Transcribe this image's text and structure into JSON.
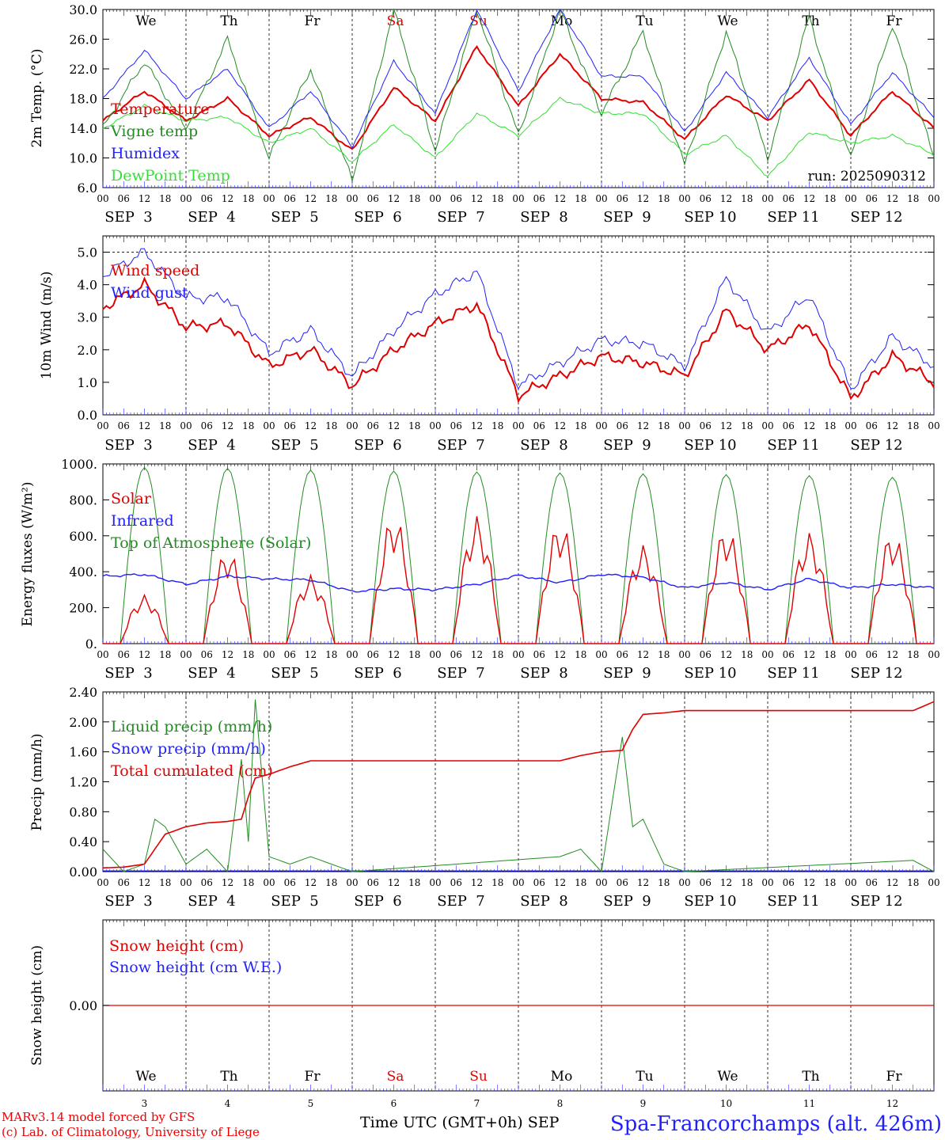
{
  "run_label": "run: 2025090312",
  "x_title": "Time UTC (GMT+0h) SEP",
  "station": "Spa-Francorchamps (alt. 426m)",
  "credits": [
    "MARv3.14 model forced by GFS",
    "(c) Lab. of Climatology, University of Liege"
  ],
  "weekdays": [
    {
      "label": "We",
      "color": "#000000"
    },
    {
      "label": "Th",
      "color": "#000000"
    },
    {
      "label": "Fr",
      "color": "#000000"
    },
    {
      "label": "Sa",
      "color": "#e00000"
    },
    {
      "label": "Su",
      "color": "#e00000"
    },
    {
      "label": "Mo",
      "color": "#000000"
    },
    {
      "label": "Tu",
      "color": "#000000"
    },
    {
      "label": "We",
      "color": "#000000"
    },
    {
      "label": "Th",
      "color": "#000000"
    },
    {
      "label": "Fr",
      "color": "#000000"
    }
  ],
  "date_labels": [
    "SEP  3",
    "SEP  4",
    "SEP  5",
    "SEP  6",
    "SEP  7",
    "SEP  8",
    "SEP  9",
    "SEP 10",
    "SEP 11",
    "SEP 12"
  ],
  "day_numbers": [
    "3",
    "4",
    "5",
    "6",
    "7",
    "8",
    "9",
    "10",
    "11",
    "12"
  ],
  "hour_ticks": [
    "00",
    "06",
    "12",
    "18"
  ],
  "final_tick": "00",
  "chart_data": [
    {
      "type": "line",
      "ylabel": "2m Temp. (°C)",
      "ylim": [
        6,
        30
      ],
      "yticks": [
        "6.0",
        "10.0",
        "14.0",
        "18.0",
        "22.0",
        "26.0",
        "30.0"
      ],
      "x_hours": [
        0,
        12,
        24,
        36,
        48,
        60,
        72,
        84,
        96,
        108,
        120,
        132,
        144,
        156,
        168,
        180,
        192,
        204,
        216,
        228,
        240
      ],
      "series": [
        {
          "name": "Temperature",
          "color": "#e00000",
          "values": [
            15,
            19,
            15,
            18,
            13,
            15.5,
            11,
            19.5,
            15,
            25,
            17,
            24,
            18,
            17.5,
            12.5,
            18.5,
            15,
            20.5,
            13,
            19,
            14
          ]
        },
        {
          "name": "Vigne temp",
          "color": "#228b22",
          "values": [
            14,
            23,
            14,
            26,
            10,
            22,
            7,
            30,
            11,
            30,
            13,
            30,
            16,
            27,
            9,
            27,
            10,
            29,
            10,
            28,
            10
          ]
        },
        {
          "name": "Humidex",
          "color": "#1f1fff",
          "values": [
            18,
            24.5,
            18,
            22,
            14,
            19,
            11.5,
            23,
            16,
            30,
            19,
            30,
            21,
            21,
            13.5,
            21.5,
            15.5,
            23.5,
            14.5,
            21.5,
            15.5
          ]
        },
        {
          "name": "DewPoint Temp",
          "color": "#33e033",
          "values": [
            14,
            17,
            15,
            15.5,
            12,
            14,
            9.5,
            14.5,
            10,
            16,
            13,
            18,
            16,
            16,
            10.5,
            13,
            7.5,
            13.5,
            12,
            13,
            10.5
          ]
        }
      ]
    },
    {
      "type": "line",
      "ylabel": "10m Wind (m/s)",
      "ylim": [
        0,
        5.5
      ],
      "yticks": [
        "0.0",
        "1.0",
        "2.0",
        "3.0",
        "4.0",
        "5.0"
      ],
      "dashed_level": 5.0,
      "x_hours": [
        0,
        12,
        24,
        36,
        48,
        60,
        72,
        84,
        96,
        108,
        120,
        132,
        144,
        156,
        168,
        180,
        192,
        204,
        216,
        228,
        240
      ],
      "series": [
        {
          "name": "Wind speed",
          "color": "#e00000",
          "values": [
            3.3,
            4.0,
            2.7,
            2.8,
            1.5,
            2.0,
            0.9,
            2.0,
            2.8,
            3.4,
            0.6,
            1.2,
            1.8,
            1.6,
            1.2,
            3.2,
            2.0,
            2.8,
            0.5,
            1.8,
            1.0
          ]
        },
        {
          "name": "Wind gust",
          "color": "#1f1fff",
          "values": [
            4.3,
            5.0,
            3.6,
            3.6,
            1.9,
            2.6,
            1.2,
            2.6,
            3.7,
            4.4,
            0.9,
            1.6,
            2.3,
            2.2,
            1.5,
            4.2,
            2.5,
            3.7,
            0.8,
            2.4,
            1.5
          ]
        }
      ]
    },
    {
      "type": "line",
      "ylabel": "Energy fluxes (W/m²)",
      "ylim": [
        0,
        1000
      ],
      "yticks": [
        "0.",
        "200.",
        "400.",
        "600.",
        "800.",
        "1000."
      ],
      "daylight_hours": [
        5,
        19
      ],
      "toa_peaks": [
        980,
        975,
        965,
        960,
        955,
        950,
        945,
        940,
        935,
        925
      ],
      "solar_peaks": [
        270,
        520,
        380,
        720,
        710,
        680,
        550,
        650,
        620,
        620
      ],
      "x_hours": [
        0,
        12,
        24,
        36,
        48,
        60,
        72,
        84,
        96,
        108,
        120,
        132,
        144,
        156,
        168,
        180,
        192,
        204,
        216,
        228,
        240
      ],
      "series": [
        {
          "name": "Solar",
          "color": "#e00000"
        },
        {
          "name": "Infrared",
          "color": "#1f1fff",
          "values": [
            375,
            385,
            330,
            375,
            360,
            355,
            290,
            305,
            300,
            330,
            380,
            340,
            385,
            370,
            310,
            340,
            300,
            360,
            310,
            330,
            310
          ]
        },
        {
          "name": "Top of Atmosphere (Solar)",
          "color": "#228b22"
        }
      ]
    },
    {
      "type": "line",
      "ylabel": "Precip (mm/h)",
      "ylim": [
        0,
        2.4
      ],
      "yticks": [
        "0.00",
        "0.40",
        "0.80",
        "1.20",
        "1.60",
        "2.00",
        "2.40"
      ],
      "x_hours": [
        0,
        6,
        12,
        15,
        18,
        24,
        30,
        36,
        40,
        42,
        44,
        48,
        54,
        60,
        66,
        72,
        132,
        138,
        144,
        150,
        153,
        156,
        162,
        168,
        234,
        240
      ],
      "series": [
        {
          "name": "Liquid precip (mm/h)",
          "color": "#228b22",
          "values": [
            0.3,
            0.0,
            0.1,
            0.7,
            0.6,
            0.1,
            0.3,
            0.0,
            1.5,
            0.4,
            2.3,
            0.2,
            0.1,
            0.2,
            0.1,
            0.0,
            0.2,
            0.3,
            0.0,
            1.8,
            0.6,
            0.7,
            0.1,
            0.0,
            0.15,
            0.0
          ]
        },
        {
          "name": "Snow precip (mm/h)",
          "color": "#1f1fff"
        },
        {
          "name": "Total cumulated (cm)",
          "color": "#e00000",
          "values": [
            0.05,
            0.06,
            0.1,
            0.3,
            0.5,
            0.6,
            0.65,
            0.67,
            0.7,
            1.0,
            1.25,
            1.3,
            1.4,
            1.48,
            1.48,
            1.48,
            1.48,
            1.55,
            1.6,
            1.62,
            1.9,
            2.1,
            2.12,
            2.15,
            2.15,
            2.27
          ]
        }
      ]
    },
    {
      "type": "line",
      "ylabel": "Snow height (cm)",
      "yticks": [
        "0.00"
      ],
      "series": [
        {
          "name": "Snow height (cm)",
          "color": "#e00000",
          "values": [
            0,
            0
          ]
        },
        {
          "name": "Snow height (cm W.E.)",
          "color": "#1f1fff"
        }
      ]
    }
  ]
}
